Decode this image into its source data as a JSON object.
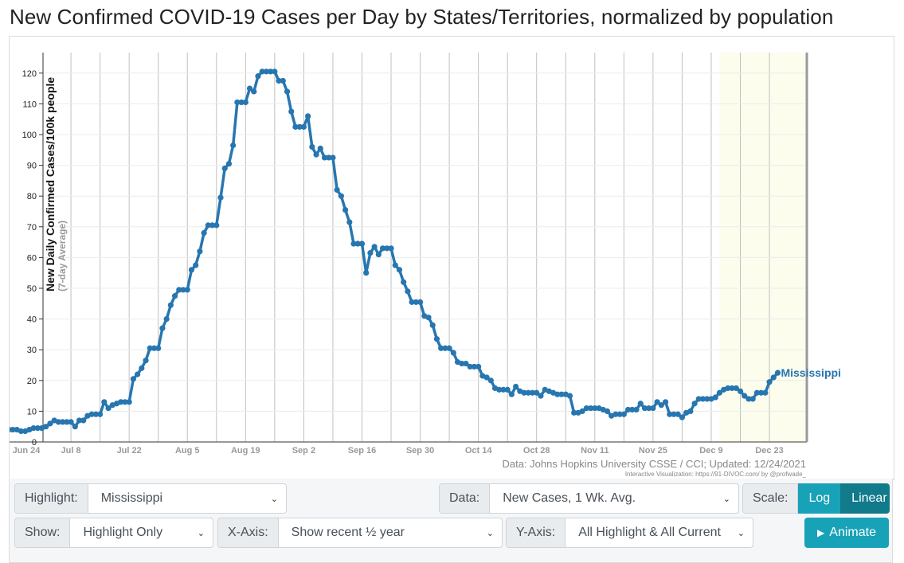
{
  "page": {
    "title": "New Confirmed COVID-19 Cases per Day by States/Territories, normalized by population"
  },
  "colors": {
    "line": "#2776b0",
    "accent": "#17a2b8",
    "accent_dark": "#117a8b",
    "grid": "#c0c0c0",
    "highlight_band": "#fdfdee"
  },
  "chart_data": {
    "type": "line",
    "title": "New Confirmed COVID-19 Cases per Day by States/Territories, normalized by population",
    "ylabel": "New Daily Confirmed Cases/100k people",
    "ylabel_sub": "(7-day Average)",
    "xlabel": "",
    "ylim": [
      0,
      125
    ],
    "yticks": [
      0,
      10,
      20,
      30,
      40,
      50,
      60,
      70,
      80,
      90,
      100,
      110,
      120
    ],
    "x_range": [
      0,
      184
    ],
    "x_ticks": [
      {
        "label": "Jun 24",
        "day": 0
      },
      {
        "label": "Jul 8",
        "day": 14
      },
      {
        "label": "Jul 22",
        "day": 28
      },
      {
        "label": "Aug 5",
        "day": 42
      },
      {
        "label": "Aug 19",
        "day": 56
      },
      {
        "label": "Sep 2",
        "day": 70
      },
      {
        "label": "Sep 16",
        "day": 84
      },
      {
        "label": "Sep 30",
        "day": 98
      },
      {
        "label": "Oct 14",
        "day": 112
      },
      {
        "label": "Oct 28",
        "day": 126
      },
      {
        "label": "Nov 11",
        "day": 140
      },
      {
        "label": "Nov 25",
        "day": 154
      },
      {
        "label": "Dec 9",
        "day": 168
      },
      {
        "label": "Dec 23",
        "day": 182
      }
    ],
    "highlight_band_start_day": 170,
    "series": [
      {
        "name": "Mississippi",
        "label": "Mississippi",
        "start_day": -2,
        "values": [
          4,
          4,
          4,
          4,
          3.5,
          3.5,
          4,
          4.5,
          4.5,
          4.5,
          5,
          6,
          7,
          6.5,
          6.5,
          6.5,
          6.5,
          5,
          7,
          7,
          8.5,
          9,
          9,
          9,
          13,
          11,
          12,
          12.5,
          13,
          13,
          13,
          20.5,
          22,
          24,
          26.5,
          30.5,
          30.5,
          30.5,
          37,
          40,
          44.5,
          47.5,
          49.5,
          49.5,
          49.5,
          56,
          57.5,
          62,
          68,
          70.5,
          70.5,
          70.5,
          79.5,
          89,
          90.5,
          96.5,
          110.5,
          110.5,
          110.5,
          115,
          114,
          119,
          120.5,
          120.5,
          120.5,
          120.5,
          117.5,
          117.5,
          114,
          107.5,
          102.5,
          102.5,
          102.5,
          106,
          96,
          93.5,
          95.5,
          92.5,
          92.5,
          92.5,
          82,
          80,
          75.5,
          71.5,
          64.5,
          64.5,
          64.5,
          55,
          61.5,
          63.5,
          61,
          63,
          63,
          63,
          57.5,
          56,
          52,
          49,
          45.5,
          45.5,
          45.5,
          41,
          40.5,
          38,
          33.5,
          30.5,
          30.5,
          30.5,
          29,
          26,
          25.5,
          25.5,
          24.5,
          24.5,
          24.5,
          21.5,
          21,
          20,
          17.5,
          17,
          17,
          17,
          15.5,
          18,
          16.5,
          16,
          16,
          16,
          16,
          15,
          17,
          16.5,
          16,
          15.5,
          15.5,
          15.5,
          15,
          9.5,
          9.5,
          10,
          11,
          11,
          11,
          11,
          10.5,
          10,
          8.5,
          9,
          9,
          9,
          10.5,
          10.5,
          10.5,
          12.5,
          11,
          11,
          11,
          13,
          12,
          13,
          9,
          9,
          9,
          8,
          9.5,
          10,
          12.5,
          14,
          14,
          14,
          14,
          14.5,
          16,
          17,
          17.5,
          17.5,
          17.5,
          16.5,
          15,
          14,
          14,
          16,
          16,
          16,
          19.5,
          21,
          22.5
        ]
      }
    ],
    "source_note": "Data: Johns Hopkins University CSSE / CCI; Updated: 12/24/2021",
    "credit_note": "Interactive Visualization: https://91-DIVOC.com/ by @profwade_"
  },
  "controls": {
    "highlight": {
      "label": "Highlight:",
      "value": "Mississippi"
    },
    "data": {
      "label": "Data:",
      "value": "New Cases, 1 Wk. Avg."
    },
    "scale": {
      "label": "Scale:",
      "log_label": "Log",
      "linear_label": "Linear"
    },
    "show": {
      "label": "Show:",
      "value": "Highlight Only"
    },
    "x_axis": {
      "label": "X-Axis:",
      "value": "Show recent ½ year"
    },
    "y_axis": {
      "label": "Y-Axis:",
      "value": "All Highlight & All Current"
    },
    "animate": {
      "label": "Animate"
    }
  }
}
